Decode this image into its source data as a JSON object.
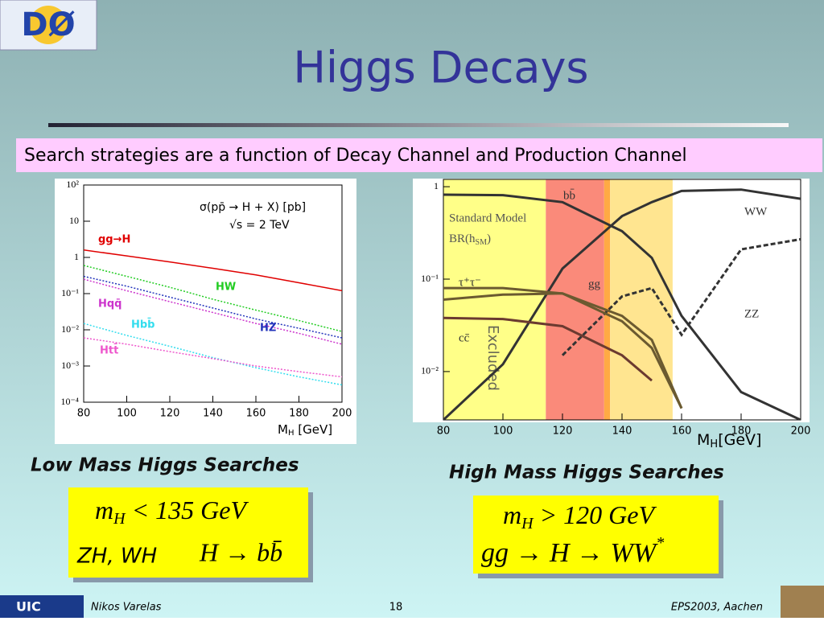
{
  "slide": {
    "logo": "DØ",
    "title": "Higgs Decays",
    "banner": "Search strategies are a function of Decay Channel and Production Channel",
    "left_heading": "Low Mass Higgs Searches",
    "right_heading": "High Mass Higgs Searches",
    "left_box": {
      "symbol": "m",
      "sub": "H",
      "condition": "< 135 GeV",
      "channel": "ZH, WH",
      "decay": "H → bb̄"
    },
    "right_box": {
      "symbol": "m",
      "sub": "H",
      "condition": "> 120 GeV",
      "decay": "gg → H → WW",
      "sup": "*"
    },
    "footer": {
      "logo": "UIC",
      "author": "Nikos Varelas",
      "page": "18",
      "event": "EPS2003, Aachen"
    }
  },
  "chart_data": [
    {
      "type": "line",
      "log_y": true,
      "grid": false,
      "annotations": [
        "σ(pp̄ → H + X)  [pb]",
        "√s = 2 TeV"
      ],
      "xlabel": {
        "main": "M",
        "sub": "H",
        "unit": " [GeV]"
      },
      "x": [
        80,
        100,
        120,
        140,
        160,
        180,
        200
      ],
      "xlim": [
        80,
        200
      ],
      "xticks": [
        80,
        100,
        120,
        140,
        160,
        180,
        200
      ],
      "ylim": [
        0.0001,
        100
      ],
      "yticks": [
        {
          "value": 0.0001,
          "label": "10⁻⁴"
        },
        {
          "value": 0.001,
          "label": "10⁻³"
        },
        {
          "value": 0.01,
          "label": "10⁻²"
        },
        {
          "value": 0.1,
          "label": "10⁻¹"
        },
        1,
        10,
        {
          "value": 100,
          "label": "10²"
        }
      ],
      "series": [
        {
          "name": "gg→H",
          "color": "#e00000",
          "dash": false,
          "values": [
            1.6,
            1.1,
            0.75,
            0.5,
            0.33,
            0.2,
            0.12
          ]
        },
        {
          "name": "HW",
          "color": "#22cc22",
          "dash": true,
          "values": [
            0.6,
            0.3,
            0.15,
            0.07,
            0.035,
            0.018,
            0.009
          ]
        },
        {
          "name": "Hqq̄",
          "color": "#cc33cc",
          "dash": true,
          "values": [
            0.25,
            0.12,
            0.06,
            0.03,
            0.015,
            0.008,
            0.004
          ]
        },
        {
          "name": "HZ",
          "color": "#2233bb",
          "dash": true,
          "values": [
            0.3,
            0.16,
            0.08,
            0.04,
            0.02,
            0.011,
            0.006
          ]
        },
        {
          "name": "Hbb̄",
          "color": "#33ddee",
          "dash": true,
          "values": [
            0.015,
            0.007,
            0.0035,
            0.0017,
            0.0009,
            0.0005,
            0.0003
          ]
        },
        {
          "name": "Htt̄",
          "color": "#ee55cc",
          "dash": true,
          "values": [
            0.006,
            0.004,
            0.0025,
            0.0016,
            0.001,
            0.0007,
            0.0005
          ]
        }
      ]
    },
    {
      "type": "line",
      "log_y": true,
      "grid": false,
      "annotations": [
        "Standard Model"
      ],
      "br_label": {
        "main": "BR(h",
        "sub": "SM",
        "end": ")"
      },
      "excluded_label": "Excluded",
      "xlabel": {
        "main": "M",
        "sub": "H",
        "unit": "[GeV]"
      },
      "regions": [
        {
          "from": 80,
          "to": 114.4,
          "color": "#ffff88"
        },
        {
          "from": 114.4,
          "to": 134,
          "color": "#fa8a7a"
        },
        {
          "from": 134,
          "to": 136,
          "color": "#ffaa44"
        },
        {
          "from": 136,
          "to": 157,
          "color": "#ffe590"
        }
      ],
      "x": [
        80,
        100,
        120,
        140,
        150,
        160,
        180,
        200
      ],
      "xlim": [
        80,
        200
      ],
      "xticks": [
        80,
        100,
        120,
        140,
        160,
        180,
        200
      ],
      "ylim": [
        0.003,
        1.2
      ],
      "yticks": [
        {
          "value": 0.01,
          "label": "10⁻²"
        },
        {
          "value": 0.1,
          "label": "10⁻¹"
        },
        1
      ],
      "series": [
        {
          "name": "bb̄",
          "color": "#333333",
          "dash": false,
          "values": [
            0.82,
            0.81,
            0.68,
            0.33,
            0.17,
            0.04,
            0.006,
            0.003
          ]
        },
        {
          "name": "WW",
          "color": "#333333",
          "dash": false,
          "values": [
            0.003,
            0.012,
            0.13,
            0.48,
            0.68,
            0.9,
            0.93,
            0.74
          ]
        },
        {
          "name": "ZZ",
          "color": "#333333",
          "dash": true,
          "values": [
            null,
            null,
            0.015,
            0.065,
            0.08,
            0.025,
            0.21,
            0.27
          ]
        },
        {
          "name": "gg",
          "color": "#6b5a30",
          "dash": false,
          "values": [
            0.06,
            0.068,
            0.07,
            0.04,
            0.022,
            0.004,
            null,
            null
          ]
        },
        {
          "name": "τ⁺τ⁻",
          "color": "#6b5a30",
          "dash": false,
          "values": [
            0.08,
            0.08,
            0.07,
            0.035,
            0.018,
            0.004,
            null,
            null
          ]
        },
        {
          "name": "cc̄",
          "color": "#6b3a30",
          "dash": false,
          "values": [
            0.038,
            0.037,
            0.031,
            0.015,
            0.008,
            null,
            null,
            null
          ]
        }
      ]
    }
  ]
}
